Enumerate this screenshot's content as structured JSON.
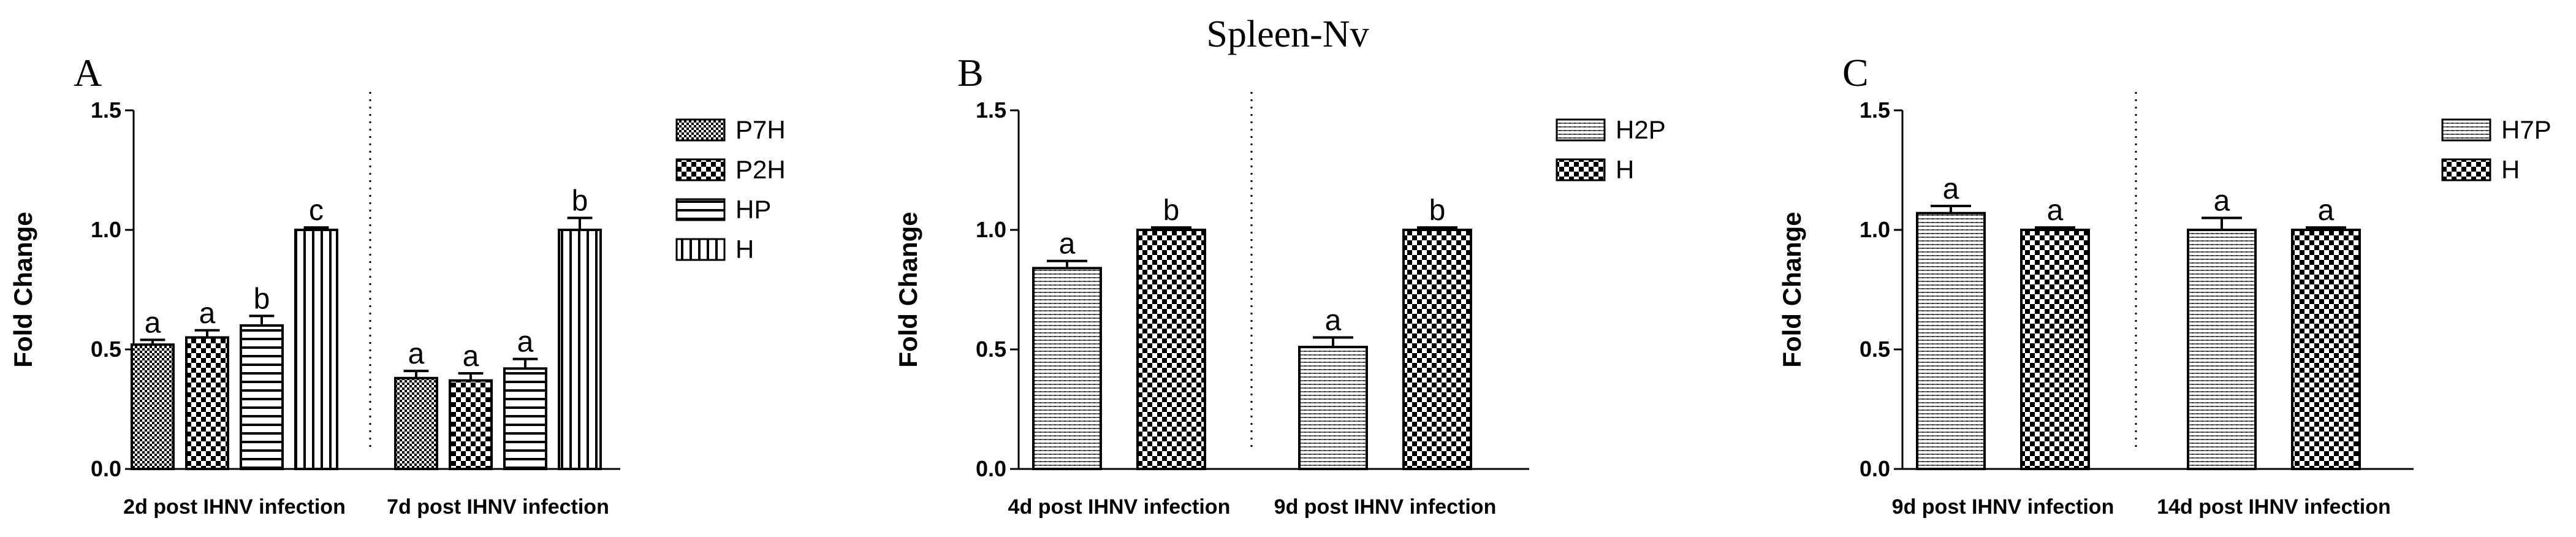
{
  "figure_title": "Spleen-Nv",
  "chart_data": [
    {
      "panel": "A",
      "type": "bar",
      "ylabel": "Fold Change",
      "ylim": [
        0,
        1.5
      ],
      "yticks": [
        "0.0",
        "0.5",
        "1.0",
        "1.5"
      ],
      "categories": [
        "2d post IHNV infection",
        "7d post IHNV infection"
      ],
      "series": [
        {
          "name": "P7H",
          "pattern": "dense-check",
          "values": [
            0.52,
            0.38
          ],
          "errors": [
            0.02,
            0.03
          ],
          "labels": [
            "a",
            "a"
          ]
        },
        {
          "name": "P2H",
          "pattern": "check",
          "values": [
            0.55,
            0.37
          ],
          "errors": [
            0.03,
            0.03
          ],
          "labels": [
            "a",
            "a"
          ]
        },
        {
          "name": "HP",
          "pattern": "hlines",
          "values": [
            0.6,
            0.42
          ],
          "errors": [
            0.04,
            0.04
          ],
          "labels": [
            "b",
            "a"
          ]
        },
        {
          "name": "H",
          "pattern": "vlines",
          "values": [
            1.0,
            1.0
          ],
          "errors": [
            0.01,
            0.05
          ],
          "labels": [
            "c",
            "b"
          ]
        }
      ],
      "legend": "right"
    },
    {
      "panel": "B",
      "type": "bar",
      "ylabel": "Fold Change",
      "ylim": [
        0,
        1.5
      ],
      "yticks": [
        "0.0",
        "0.5",
        "1.0",
        "1.5"
      ],
      "categories": [
        "4d post IHNV infection",
        "9d post IHNV infection"
      ],
      "series": [
        {
          "name": "H2P",
          "pattern": "fine-hlines",
          "values": [
            0.84,
            0.51
          ],
          "errors": [
            0.03,
            0.04
          ],
          "labels": [
            "a",
            "a"
          ]
        },
        {
          "name": "H",
          "pattern": "check",
          "values": [
            1.0,
            1.0
          ],
          "errors": [
            0.01,
            0.01
          ],
          "labels": [
            "b",
            "b"
          ]
        }
      ],
      "legend": "right"
    },
    {
      "panel": "C",
      "type": "bar",
      "ylabel": "Fold Change",
      "ylim": [
        0,
        1.5
      ],
      "yticks": [
        "0.0",
        "0.5",
        "1.0",
        "1.5"
      ],
      "categories": [
        "9d post IHNV infection",
        "14d post IHNV infection"
      ],
      "series": [
        {
          "name": "H7P",
          "pattern": "fine-hlines",
          "values": [
            1.07,
            1.0
          ],
          "errors": [
            0.03,
            0.05
          ],
          "labels": [
            "a",
            "a"
          ]
        },
        {
          "name": "H",
          "pattern": "check",
          "values": [
            1.0,
            1.0
          ],
          "errors": [
            0.01,
            0.01
          ],
          "labels": [
            "a",
            "a"
          ]
        }
      ],
      "legend": "right"
    }
  ]
}
